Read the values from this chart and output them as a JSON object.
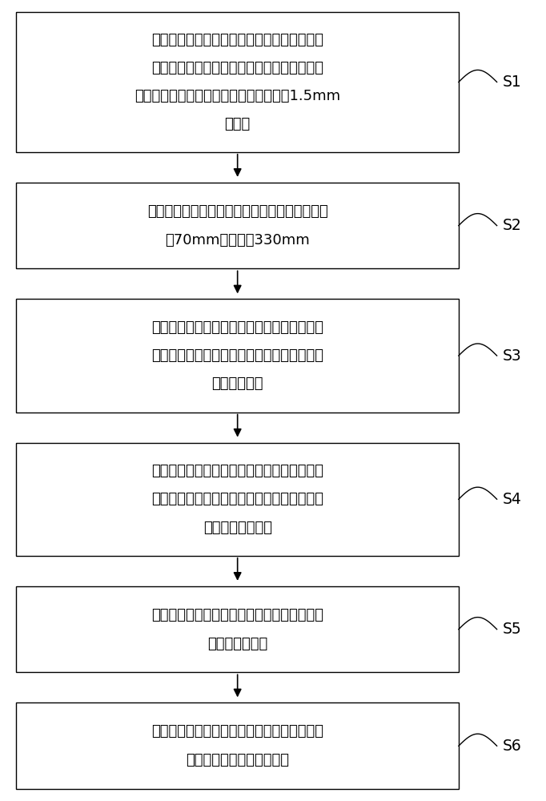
{
  "background_color": "#ffffff",
  "box_edge_color": "#000000",
  "box_fill_color": "#ffffff",
  "text_color": "#000000",
  "arrow_color": "#000000",
  "steps": [
    {
      "label": "S1",
      "lines": [
        "将待测试的高水压电磁阀通过一第一水管连接",
        "于一水箱的直通阀门，并自该高水压电磁阀的",
        "出水口通过一第二水管连接一内径不超过1.5mm",
        "的针头"
      ]
    },
    {
      "label": "S2",
      "lines": [
        "往该水箱中注水，水面距离直通阀门的高度不低",
        "于70mm且不高于330mm"
      ]
    },
    {
      "label": "S3",
      "lines": [
        "打开高水压电磁阀并打开直通阀门，待水流排",
        "去直通阀门与针头之间的管路中的空气后关闭",
        "高水压电磁阀"
      ]
    },
    {
      "label": "S4",
      "lines": [
        "打开高水压电磁阀一第一预设时长后，关闭高",
        "水压电磁阀一第二预设时长，重复通断高水压",
        "电磁阀一预设次数"
      ]
    },
    {
      "label": "S5",
      "lines": [
        "再对高水压电磁阀通断一次并采集关闭状态下",
        "针头处滴出的水"
      ]
    },
    {
      "label": "S6",
      "lines": [
        "测量从针头处采集的水的水体积量以判断高水",
        "压电磁阀的低水压密封性能"
      ]
    }
  ],
  "fig_width": 6.82,
  "fig_height": 10.0,
  "font_size": 13.0,
  "label_font_size": 13.5
}
